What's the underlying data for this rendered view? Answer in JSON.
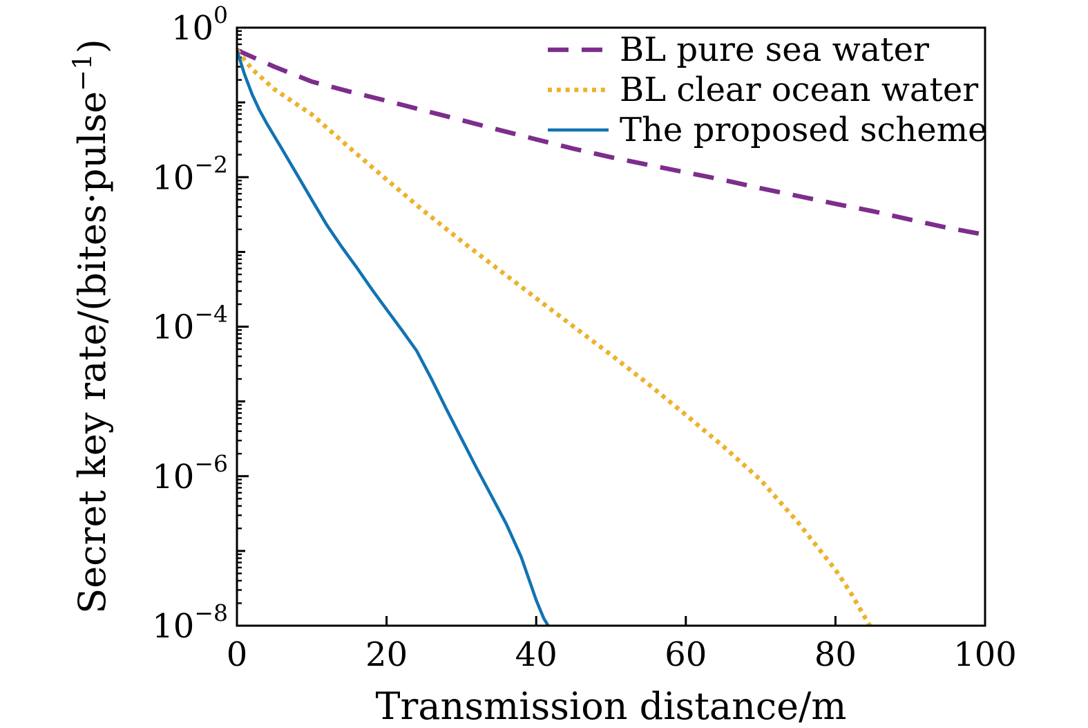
{
  "figure": {
    "background": "#ffffff",
    "frame_color": "#000000",
    "text_color": "#000000"
  },
  "chart_data": {
    "type": "line",
    "title": "",
    "xlabel": "Transmission distance/m",
    "ylabel": {
      "full": "Secret key rate/(bites·pulse−1)",
      "prefix": "Secret key rate/(bites·pulse",
      "sup": "−1",
      "suffix": ")"
    },
    "xlim": [
      0,
      100
    ],
    "y_scale": "log",
    "ylim_exponents": [
      0,
      -8
    ],
    "grid": false,
    "x_ticks": [
      0,
      20,
      40,
      60,
      80,
      100
    ],
    "y_tick_base": "10",
    "y_tick_exponents": [
      0,
      -2,
      -4,
      -6,
      -8
    ],
    "y_tick_sup_labels": [
      "0",
      "−2",
      "−4",
      "−6",
      "−8"
    ],
    "legend_position": "top-right",
    "series": [
      {
        "name": "BL pure sea water",
        "color": "#7D2D8C",
        "line_style": "dashed",
        "line_width": 6.5,
        "x": [
          0,
          5,
          10,
          15,
          20,
          25,
          30,
          35,
          40,
          45,
          50,
          55,
          60,
          65,
          70,
          75,
          80,
          85,
          90,
          95,
          100
        ],
        "y": [
          0.5,
          0.3,
          0.19,
          0.14,
          0.105,
          0.078,
          0.058,
          0.043,
          0.032,
          0.024,
          0.0185,
          0.0146,
          0.0116,
          0.0092,
          0.0071,
          0.0056,
          0.0044,
          0.0035,
          0.0027,
          0.0021,
          0.0017
        ]
      },
      {
        "name": "BL clear ocean water",
        "color": "#EDB22D",
        "line_style": "dotted",
        "line_width": 6.5,
        "x": [
          0,
          2,
          5,
          10,
          15,
          20,
          25,
          30,
          35,
          40,
          45,
          50,
          55,
          60,
          65,
          70,
          75,
          80,
          82,
          84,
          84.6
        ],
        "y": [
          0.5,
          0.28,
          0.15,
          0.069,
          0.025,
          0.0093,
          0.0035,
          0.0014,
          0.00058,
          0.00024,
          0.0001,
          4.2e-05,
          1.7e-05,
          6.6e-06,
          2.5e-06,
          8.9e-07,
          2.4e-07,
          5.6e-08,
          2.8e-08,
          1.26e-08,
          1e-08
        ]
      },
      {
        "name": "The proposed scheme",
        "color": "#1173B2",
        "line_style": "solid",
        "line_width": 4.5,
        "x": [
          0,
          1,
          2,
          3,
          4,
          6,
          8,
          10,
          12,
          14,
          16,
          18,
          20,
          22,
          24,
          26,
          28,
          30,
          32,
          34,
          36,
          38,
          40,
          41,
          41.6
        ],
        "y": [
          0.5,
          0.24,
          0.13,
          0.079,
          0.052,
          0.024,
          0.011,
          0.005,
          0.0023,
          0.00117,
          0.00062,
          0.00032,
          0.00017,
          9.1e-05,
          4.8e-05,
          2e-05,
          7.9e-06,
          3.2e-06,
          1.3e-06,
          5.5e-07,
          2.3e-07,
          8.3e-08,
          2.2e-08,
          1.26e-08,
          1e-08
        ]
      }
    ]
  }
}
